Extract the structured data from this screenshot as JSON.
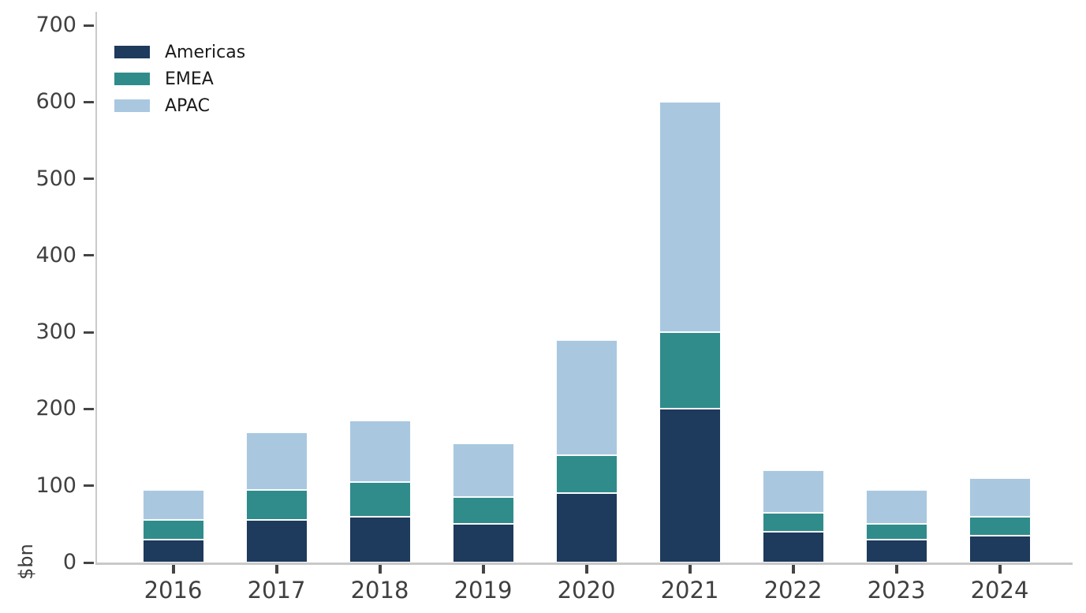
{
  "chart_data": {
    "type": "bar",
    "stacked": true,
    "title": "",
    "xlabel": "",
    "ylabel": "$bn",
    "categories": [
      "2016",
      "2017",
      "2018",
      "2019",
      "2020",
      "2021",
      "2022",
      "2023",
      "2024"
    ],
    "series": [
      {
        "name": "Americas",
        "color": "#1e3a5c",
        "values": [
          30,
          55,
          60,
          50,
          90,
          200,
          40,
          30,
          35
        ]
      },
      {
        "name": "EMEA",
        "color": "#2f8c8b",
        "values": [
          25,
          40,
          45,
          35,
          50,
          100,
          25,
          20,
          25
        ]
      },
      {
        "name": "APAC",
        "color": "#a9c8e0",
        "values": [
          40,
          75,
          80,
          70,
          150,
          300,
          55,
          45,
          50
        ]
      }
    ],
    "totals": [
      95,
      170,
      185,
      155,
      290,
      600,
      120,
      95,
      110
    ],
    "ylim": [
      0,
      700
    ],
    "yticks": [
      0,
      100,
      200,
      300,
      400,
      500,
      600,
      700
    ],
    "grid": false,
    "legend_position": "upper left",
    "bar_edge_color": "#ffffff",
    "axis_line_color": "#c9c9c9",
    "tick_color": "#444444",
    "tick_label_color": "#404040"
  }
}
